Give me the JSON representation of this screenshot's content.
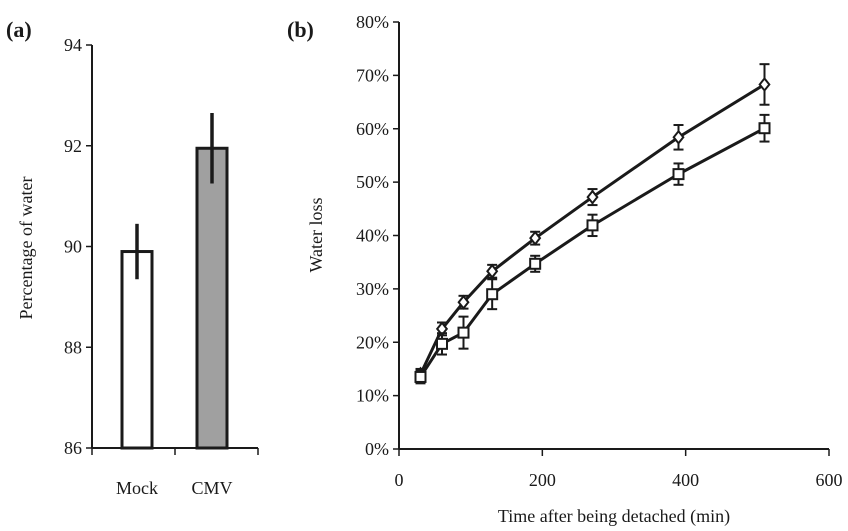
{
  "chart_data": [
    {
      "panel": "(a)",
      "type": "bar",
      "categories": [
        "Mock",
        "CMV"
      ],
      "values": [
        89.9,
        91.95
      ],
      "errors": [
        0.55,
        0.7
      ],
      "bar_colors": [
        "#ffffff",
        "#a0a0a0"
      ],
      "xlabel": "",
      "ylabel": "Percentage of water",
      "ylim": [
        86,
        94
      ],
      "yticks": [
        86,
        88,
        90,
        92,
        94
      ],
      "ytick_labels": [
        "86",
        "88",
        "90",
        "92",
        "94"
      ],
      "grid": false
    },
    {
      "panel": "(b)",
      "type": "line",
      "xlabel": "Time after being detached (min)",
      "ylabel": "Water loss",
      "xlim": [
        0,
        600
      ],
      "ylim": [
        0,
        0.8
      ],
      "xticks": [
        0,
        200,
        400,
        600
      ],
      "xtick_labels": [
        "0",
        "200",
        "400",
        "600"
      ],
      "yticks": [
        0,
        0.1,
        0.2,
        0.3,
        0.4,
        0.5,
        0.6,
        0.7,
        0.8
      ],
      "ytick_labels": [
        "0%",
        "10%",
        "20%",
        "30%",
        "40%",
        "50%",
        "60%",
        "70%",
        "80%"
      ],
      "grid": false,
      "series": [
        {
          "marker": "diamond",
          "x": [
            30,
            60,
            90,
            130,
            190,
            270,
            390,
            510
          ],
          "y": [
            0.14,
            0.225,
            0.275,
            0.333,
            0.395,
            0.472,
            0.584,
            0.683
          ],
          "errors": [
            0.01,
            0.012,
            0.012,
            0.012,
            0.012,
            0.015,
            0.023,
            0.038
          ]
        },
        {
          "marker": "square",
          "x": [
            30,
            60,
            90,
            130,
            190,
            270,
            390,
            510
          ],
          "y": [
            0.135,
            0.197,
            0.218,
            0.29,
            0.347,
            0.419,
            0.515,
            0.601
          ],
          "errors": [
            0.012,
            0.02,
            0.03,
            0.028,
            0.015,
            0.02,
            0.02,
            0.025
          ]
        }
      ]
    }
  ]
}
